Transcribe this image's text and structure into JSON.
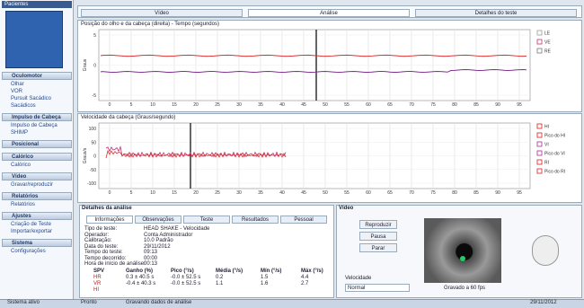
{
  "sidebar": {
    "header": "Pacientes",
    "sections": [
      {
        "title": "Oculomotor",
        "items": [
          "Olhar",
          "VOR",
          "Pursuit Sacádico",
          "Sacádicos"
        ]
      },
      {
        "title": "Impulso de Cabeça",
        "items": [
          "Impulso de Cabeça",
          "SHIMP"
        ]
      },
      {
        "title": "Posicional",
        "items": []
      },
      {
        "title": "Calórico",
        "items": [
          "Calórico"
        ]
      },
      {
        "title": "Vídeo",
        "items": [
          "Gravar/reproduzir"
        ]
      },
      {
        "title": "Relatórios",
        "items": [
          "Relatórios"
        ]
      },
      {
        "title": "Ajustes",
        "items": [
          "Criação de Teste",
          "Importar/exportar"
        ]
      },
      {
        "title": "Sistema",
        "items": [
          "Configurações"
        ]
      }
    ]
  },
  "tabs": [
    "Vídeo",
    "Análise",
    "Detalhes do teste"
  ],
  "plots": [
    {
      "title": "Posição do olho e da cabeça (direita) - Tempo (segundos)",
      "ylabel": "Graus",
      "yticks": [
        "5",
        "0",
        "-5"
      ],
      "legend": [
        "LE",
        "VE",
        "RE"
      ],
      "legend_colors": [
        "#999",
        "#c03070",
        "#777"
      ],
      "xticks": [
        "0",
        "5",
        "10",
        "15",
        "20",
        "25",
        "30",
        "35",
        "40",
        "45",
        "50",
        "55",
        "60",
        "65",
        "70",
        "75",
        "80",
        "85",
        "90",
        "95"
      ]
    },
    {
      "title": "Velocidade da cabeça (Graus/segundo)",
      "ylabel": "Graus/s",
      "yticks": [
        "100",
        "50",
        "0",
        "-50",
        "-100"
      ],
      "legend": [
        "HI",
        "Pico do HI",
        "VI",
        "Pico do VI",
        "RI",
        "Pico do RI"
      ],
      "legend_colors": [
        "#d02020",
        "#d02020",
        "#a03090",
        "#a03090",
        "#d02020",
        "#d02020"
      ],
      "xticks": [
        "0",
        "5",
        "10",
        "15",
        "20",
        "25",
        "30",
        "35",
        "40",
        "45",
        "50",
        "55",
        "60",
        "65",
        "70",
        "75",
        "80",
        "85",
        "90",
        "95"
      ]
    }
  ],
  "details": {
    "title": "Detalhes da análise",
    "tabs": [
      "Informações",
      "Observações",
      "Teste",
      "Resultados",
      "Pessoal"
    ],
    "info": [
      [
        "Tipo de teste:",
        "HEAD SHAKE - Velocidade"
      ],
      [
        "Operador:",
        "Conta Administrador"
      ],
      [
        "Calibração:",
        "10.0 Padrão"
      ],
      [
        "Data do teste:",
        "29/11/2012"
      ],
      [
        "Tempo do teste:",
        "09:13"
      ],
      [
        "Tempo decorrido:",
        "00:00"
      ],
      [
        "Hora de início de análise:",
        "00:13"
      ]
    ],
    "table": {
      "headers": [
        "SPV",
        "Ganho (%)",
        "Pico (°/s)",
        "Média (°/s)",
        "Mín (°/s)",
        "Máx (°/s)"
      ],
      "rows": [
        [
          "HR",
          "0.3 ± 40.5 s",
          "-0.0 ± 52.5 s",
          "0.2",
          "1.5",
          "4.4"
        ],
        [
          "VR",
          "-0.4 ± 40.3 s",
          "-0.0 ± 52.5 s",
          "1.1",
          "1.6",
          "2.7"
        ],
        [
          "HI"
        ]
      ]
    }
  },
  "video": {
    "title": "Vídeo",
    "buttons": [
      "Reproduzir",
      "Pausa",
      "Parar"
    ],
    "speed_label": "Velocidade",
    "speed": "Normal",
    "fps": "Gravado a 60 fps"
  },
  "statusbar": [
    "Sistema ativo",
    "Pronto",
    "Gravando dados de análise",
    "29/11/2012"
  ]
}
